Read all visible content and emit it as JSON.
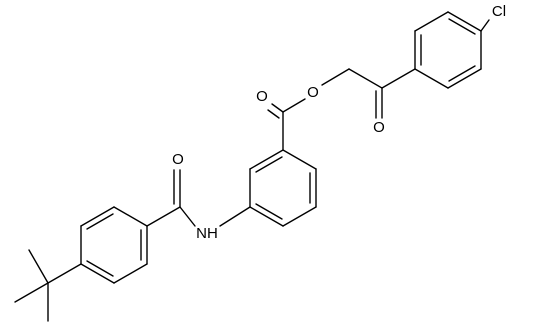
{
  "atoms": {
    "chlorine": "Cl",
    "ester_oxygen": "O",
    "ester_carbonyl_oxygen": "O",
    "ketone_oxygen": "O",
    "amide_oxygen": "O",
    "amine": "NH"
  }
}
